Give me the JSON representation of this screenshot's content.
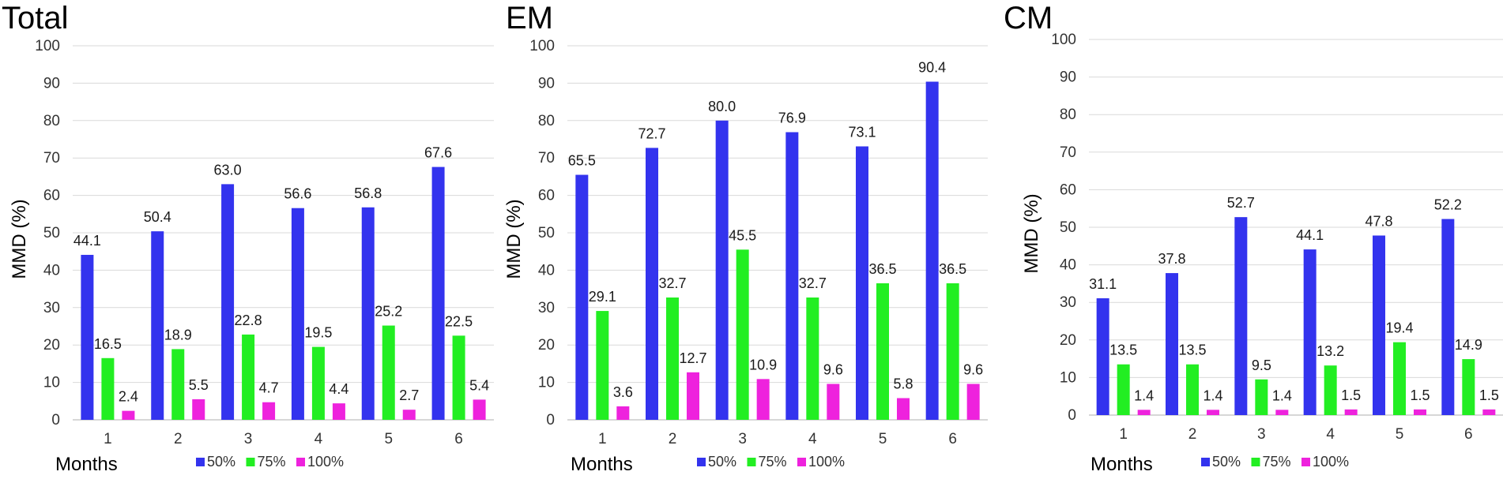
{
  "colors": {
    "s50": "#3333ee",
    "s75": "#22ee22",
    "s100": "#ee22dd"
  },
  "chart_data": [
    {
      "type": "bar",
      "title": "Total",
      "xlabel": "Months",
      "ylabel": "MMD (%)",
      "ylim": [
        0,
        100
      ],
      "yticks": [
        "0",
        "10",
        "20",
        "30",
        "40",
        "50",
        "60",
        "70",
        "80",
        "90",
        "100"
      ],
      "categories": [
        "1",
        "2",
        "3",
        "4",
        "5",
        "6"
      ],
      "series": [
        {
          "name": "50%",
          "values": [
            44.1,
            50.4,
            63.0,
            56.6,
            56.8,
            67.6
          ],
          "labels": [
            "44.1",
            "50.4",
            "63.0",
            "56.6",
            "56.8",
            "67.6"
          ]
        },
        {
          "name": "75%",
          "values": [
            16.5,
            18.9,
            22.8,
            19.5,
            25.2,
            22.5
          ],
          "labels": [
            "16.5",
            "18.9",
            "22.8",
            "19.5",
            "25.2",
            "22.5"
          ]
        },
        {
          "name": "100%",
          "values": [
            2.4,
            5.5,
            4.7,
            4.4,
            2.7,
            5.4
          ],
          "labels": [
            "2.4",
            "5.5",
            "4.7",
            "4.4",
            "2.7",
            "5.4"
          ]
        }
      ]
    },
    {
      "type": "bar",
      "title": "EM",
      "xlabel": "Months",
      "ylabel": "MMD (%)",
      "ylim": [
        0,
        100
      ],
      "yticks": [
        "0",
        "10",
        "20",
        "30",
        "40",
        "50",
        "60",
        "70",
        "80",
        "90",
        "100"
      ],
      "categories": [
        "1",
        "2",
        "3",
        "4",
        "5",
        "6"
      ],
      "series": [
        {
          "name": "50%",
          "values": [
            65.5,
            72.7,
            80.0,
            76.9,
            73.1,
            90.4
          ],
          "labels": [
            "65.5",
            "72.7",
            "80.0",
            "76.9",
            "73.1",
            "90.4"
          ]
        },
        {
          "name": "75%",
          "values": [
            29.1,
            32.7,
            45.5,
            32.7,
            36.5,
            36.5
          ],
          "labels": [
            "29.1",
            "32.7",
            "45.5",
            "32.7",
            "36.5",
            "36.5"
          ]
        },
        {
          "name": "100%",
          "values": [
            3.6,
            12.7,
            10.9,
            9.6,
            5.8,
            9.6
          ],
          "labels": [
            "3.6",
            "12.7",
            "10.9",
            "9.6",
            "5.8",
            "9.6"
          ]
        }
      ]
    },
    {
      "type": "bar",
      "title": "CM",
      "xlabel": "Months",
      "ylabel": "MMD (%)",
      "ylim": [
        0,
        100
      ],
      "yticks": [
        "0",
        "10",
        "20",
        "30",
        "40",
        "50",
        "60",
        "70",
        "80",
        "90",
        "100"
      ],
      "categories": [
        "1",
        "2",
        "3",
        "4",
        "5",
        "6"
      ],
      "series": [
        {
          "name": "50%",
          "values": [
            31.1,
            37.8,
            52.7,
            44.1,
            47.8,
            52.2
          ],
          "labels": [
            "31.1",
            "37.8",
            "52.7",
            "44.1",
            "47.8",
            "52.2"
          ]
        },
        {
          "name": "75%",
          "values": [
            13.5,
            13.5,
            9.5,
            13.2,
            19.4,
            14.9
          ],
          "labels": [
            "13.5",
            "13.5",
            "9.5",
            "13.2",
            "19.4",
            "14.9"
          ]
        },
        {
          "name": "100%",
          "values": [
            1.4,
            1.4,
            1.4,
            1.5,
            1.5,
            1.5
          ],
          "labels": [
            "1.4",
            "1.4",
            "1.4",
            "1.5",
            "1.5",
            "1.5"
          ]
        }
      ]
    }
  ]
}
